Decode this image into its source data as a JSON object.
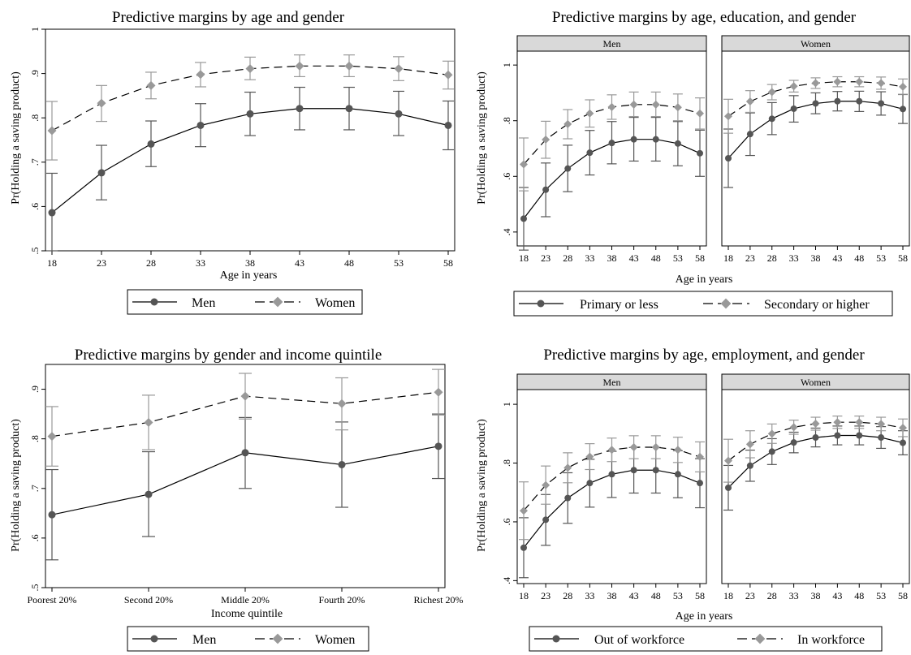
{
  "colors": {
    "dark": "#555555",
    "light": "#999999",
    "strip": "#d9d9d9",
    "frame": "#000000"
  },
  "chart_data": [
    {
      "type": "line",
      "title": "Predictive margins by age and gender",
      "xlabel": "Age in years",
      "ylabel": "Pr(Holding a saving product)",
      "x": [
        18,
        23,
        28,
        33,
        38,
        43,
        48,
        53,
        58
      ],
      "x_tick_labels": [
        "18",
        "23",
        "28",
        "33",
        "38",
        "43",
        "48",
        "53",
        "58"
      ],
      "ylim": [
        0.5,
        1.0
      ],
      "y_ticks": [
        0.5,
        0.6,
        0.7,
        0.8,
        0.9,
        1.0
      ],
      "y_tick_labels": [
        ".5",
        ".6",
        ".7",
        ".8",
        ".9",
        "1"
      ],
      "legend": [
        "Men",
        "Women"
      ],
      "legend_position": "bottom",
      "series": [
        {
          "name": "Men",
          "style": "dark",
          "values": [
            0.586,
            0.676,
            0.741,
            0.783,
            0.809,
            0.821,
            0.821,
            0.809,
            0.783
          ],
          "ci_low": [
            0.5,
            0.615,
            0.69,
            0.735,
            0.76,
            0.773,
            0.773,
            0.76,
            0.728
          ],
          "ci_high": [
            0.675,
            0.738,
            0.793,
            0.832,
            0.858,
            0.869,
            0.869,
            0.86,
            0.838
          ]
        },
        {
          "name": "Women",
          "style": "light",
          "values": [
            0.771,
            0.833,
            0.873,
            0.898,
            0.911,
            0.917,
            0.917,
            0.911,
            0.897
          ],
          "ci_low": [
            0.705,
            0.792,
            0.843,
            0.87,
            0.886,
            0.893,
            0.893,
            0.884,
            0.865
          ],
          "ci_high": [
            0.837,
            0.873,
            0.903,
            0.925,
            0.937,
            0.942,
            0.942,
            0.938,
            0.928
          ]
        }
      ]
    },
    {
      "type": "line",
      "title": "Predictive margins by age, education, and gender",
      "xlabel": "Age in years",
      "ylabel": "Pr(Holding a saving product)",
      "x": [
        18,
        23,
        28,
        33,
        38,
        43,
        48,
        53,
        58
      ],
      "x_tick_labels": [
        "18",
        "23",
        "28",
        "33",
        "38",
        "43",
        "48",
        "53",
        "58"
      ],
      "ylim": [
        0.35,
        1.05
      ],
      "y_ticks": [
        0.4,
        0.6,
        0.8,
        1.0
      ],
      "y_tick_labels": [
        ".4",
        ".6",
        ".8",
        "1"
      ],
      "facets": [
        "Men",
        "Women"
      ],
      "legend": [
        "Primary or less",
        "Secondary or higher"
      ],
      "legend_position": "bottom",
      "facet_series": [
        [
          {
            "name": "Primary or less",
            "style": "dark",
            "values": [
              0.448,
              0.552,
              0.628,
              0.685,
              0.72,
              0.733,
              0.733,
              0.718,
              0.683
            ],
            "ci_low": [
              0.335,
              0.455,
              0.545,
              0.605,
              0.645,
              0.655,
              0.655,
              0.638,
              0.6
            ],
            "ci_high": [
              0.56,
              0.648,
              0.712,
              0.765,
              0.797,
              0.812,
              0.812,
              0.797,
              0.766
            ]
          },
          {
            "name": "Secondary or higher",
            "style": "light",
            "values": [
              0.643,
              0.732,
              0.788,
              0.826,
              0.849,
              0.858,
              0.858,
              0.848,
              0.826
            ],
            "ci_low": [
              0.548,
              0.665,
              0.735,
              0.777,
              0.805,
              0.815,
              0.815,
              0.8,
              0.77
            ],
            "ci_high": [
              0.738,
              0.798,
              0.84,
              0.875,
              0.893,
              0.903,
              0.903,
              0.896,
              0.882
            ]
          }
        ],
        [
          {
            "name": "Primary or less",
            "style": "dark",
            "values": [
              0.665,
              0.752,
              0.807,
              0.843,
              0.862,
              0.87,
              0.87,
              0.862,
              0.842
            ],
            "ci_low": [
              0.56,
              0.675,
              0.75,
              0.795,
              0.825,
              0.835,
              0.833,
              0.82,
              0.79
            ],
            "ci_high": [
              0.77,
              0.828,
              0.865,
              0.89,
              0.9,
              0.905,
              0.906,
              0.904,
              0.894
            ]
          },
          {
            "name": "Secondary or higher",
            "style": "light",
            "values": [
              0.816,
              0.869,
              0.903,
              0.924,
              0.935,
              0.94,
              0.94,
              0.935,
              0.922
            ],
            "ci_low": [
              0.755,
              0.83,
              0.875,
              0.903,
              0.916,
              0.922,
              0.922,
              0.913,
              0.895
            ],
            "ci_high": [
              0.877,
              0.908,
              0.93,
              0.945,
              0.954,
              0.958,
              0.958,
              0.957,
              0.95
            ]
          }
        ]
      ]
    },
    {
      "type": "line",
      "title": "Predictive margins by gender and income quintile",
      "xlabel": "Income quintile",
      "ylabel": "Pr(Holding a saving product)",
      "categories": [
        "Poorest 20%",
        "Second 20%",
        "Middle 20%",
        "Fourth 20%",
        "Richest 20%"
      ],
      "ylim": [
        0.5,
        0.95
      ],
      "y_ticks": [
        0.5,
        0.6,
        0.7,
        0.8,
        0.9
      ],
      "y_tick_labels": [
        ".5",
        ".6",
        ".7",
        ".8",
        ".9"
      ],
      "legend": [
        "Men",
        "Women"
      ],
      "legend_position": "bottom",
      "series": [
        {
          "name": "Men",
          "style": "dark",
          "values": [
            0.647,
            0.688,
            0.772,
            0.748,
            0.785
          ],
          "ci_low": [
            0.556,
            0.603,
            0.7,
            0.662,
            0.72
          ],
          "ci_high": [
            0.738,
            0.774,
            0.843,
            0.834,
            0.85
          ]
        },
        {
          "name": "Women",
          "style": "light",
          "values": [
            0.805,
            0.833,
            0.886,
            0.871,
            0.894
          ],
          "ci_low": [
            0.745,
            0.778,
            0.84,
            0.818,
            0.848
          ],
          "ci_high": [
            0.865,
            0.888,
            0.932,
            0.923,
            0.94
          ]
        }
      ]
    },
    {
      "type": "line",
      "title": "Predictive margins by age, employment, and gender",
      "xlabel": "Age in years",
      "ylabel": "Pr(Holding a saving product)",
      "x": [
        18,
        23,
        28,
        33,
        38,
        43,
        48,
        53,
        58
      ],
      "x_tick_labels": [
        "18",
        "23",
        "28",
        "33",
        "38",
        "43",
        "48",
        "53",
        "58"
      ],
      "ylim": [
        0.39,
        1.05
      ],
      "y_ticks": [
        0.4,
        0.6,
        0.8,
        1.0
      ],
      "y_tick_labels": [
        ".4",
        ".6",
        ".8",
        "1"
      ],
      "facets": [
        "Men",
        "Women"
      ],
      "legend": [
        "Out of workforce",
        "In workforce"
      ],
      "legend_position": "bottom",
      "facet_series": [
        [
          {
            "name": "Out of workforce",
            "style": "dark",
            "values": [
              0.512,
              0.607,
              0.681,
              0.732,
              0.762,
              0.776,
              0.776,
              0.762,
              0.732
            ],
            "ci_low": [
              0.41,
              0.52,
              0.595,
              0.65,
              0.683,
              0.698,
              0.698,
              0.682,
              0.648
            ],
            "ci_high": [
              0.614,
              0.693,
              0.767,
              0.813,
              0.84,
              0.853,
              0.853,
              0.842,
              0.815
            ]
          },
          {
            "name": "In workforce",
            "style": "light",
            "values": [
              0.638,
              0.725,
              0.784,
              0.822,
              0.845,
              0.854,
              0.854,
              0.845,
              0.821
            ],
            "ci_low": [
              0.54,
              0.66,
              0.733,
              0.778,
              0.805,
              0.815,
              0.815,
              0.802,
              0.77
            ],
            "ci_high": [
              0.736,
              0.79,
              0.835,
              0.866,
              0.885,
              0.893,
              0.893,
              0.888,
              0.872
            ]
          }
        ],
        [
          {
            "name": "Out of workforce",
            "style": "dark",
            "values": [
              0.716,
              0.791,
              0.839,
              0.87,
              0.887,
              0.894,
              0.894,
              0.887,
              0.869
            ],
            "ci_low": [
              0.64,
              0.738,
              0.795,
              0.835,
              0.855,
              0.862,
              0.862,
              0.85,
              0.828
            ],
            "ci_high": [
              0.792,
              0.844,
              0.883,
              0.905,
              0.919,
              0.926,
              0.926,
              0.924,
              0.91
            ]
          },
          {
            "name": "In workforce",
            "style": "light",
            "values": [
              0.808,
              0.864,
              0.9,
              0.922,
              0.934,
              0.939,
              0.939,
              0.933,
              0.92
            ],
            "ci_low": [
              0.735,
              0.818,
              0.867,
              0.898,
              0.912,
              0.918,
              0.918,
              0.91,
              0.89
            ],
            "ci_high": [
              0.881,
              0.91,
              0.933,
              0.946,
              0.956,
              0.96,
              0.96,
              0.956,
              0.95
            ]
          }
        ]
      ]
    }
  ]
}
